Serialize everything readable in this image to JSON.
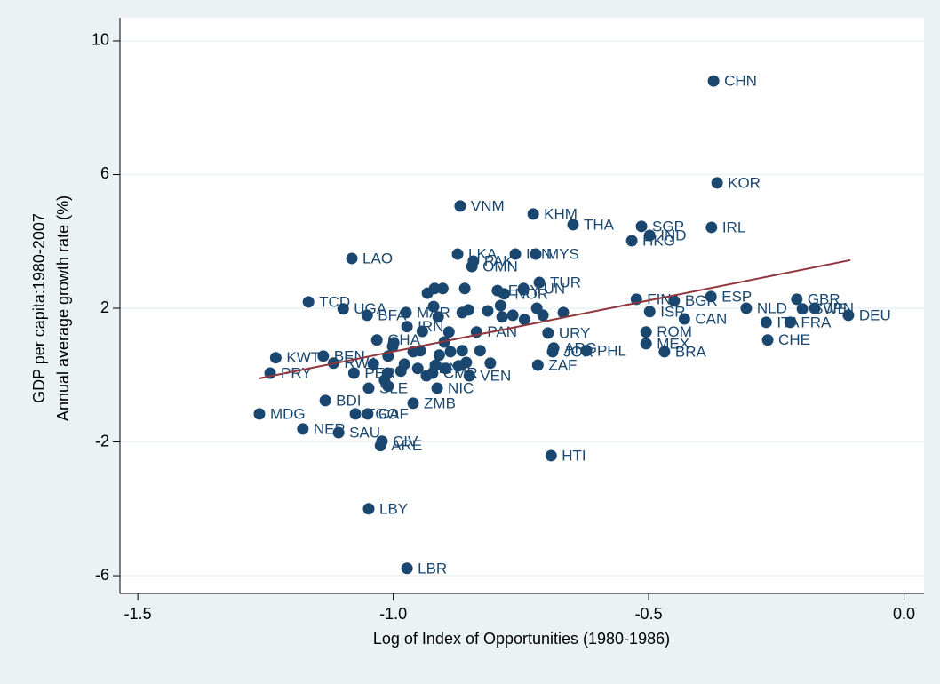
{
  "chart_data": {
    "type": "scatter",
    "x_label": "Log of Index of Opportunities (1980-1986)",
    "y_label": [
      "GDP per capita:1980-2007",
      "Annual average growth rate (%)"
    ],
    "xlim": [
      -1.535,
      0.039
    ],
    "ylim": [
      -6.53,
      10.69
    ],
    "xticks": [
      -1.5,
      {
        "value": -1.0,
        "label": "-1.0"
      },
      -0.5,
      {
        "value": 0.0,
        "label": "0.0"
      }
    ],
    "yticks": [
      -6,
      -2,
      2,
      6,
      10
    ],
    "grid": true,
    "color": "#1a476f",
    "x": [
      -0.373,
      -0.366,
      -0.869,
      -0.726,
      -0.648,
      -0.514,
      -0.377,
      -0.498,
      -0.533,
      -1.081,
      -0.874,
      -0.761,
      -0.721,
      -0.843,
      -0.846,
      -0.714,
      -0.745,
      -0.796,
      -0.783,
      -1.166,
      -1.098,
      -1.051,
      -0.975,
      -0.524,
      -0.45,
      -0.378,
      -0.21,
      -0.498,
      -0.43,
      -0.309,
      -0.199,
      -0.175,
      -0.109,
      -0.27,
      -0.223,
      -0.267,
      -0.505,
      -0.505,
      -0.469,
      -0.697,
      -0.686,
      -0.688,
      -0.622,
      -0.717,
      -0.973,
      -0.837,
      -1.032,
      -1.23,
      -1.137,
      -1.241,
      -1.117,
      -1.077,
      -1.048,
      -0.914,
      -0.851,
      -0.923,
      -0.952,
      -1.133,
      -0.961,
      -1.262,
      -1.074,
      -1.05,
      -1.177,
      -1.107,
      -1.022,
      -1.025,
      -0.691,
      -1.048,
      -0.973,
      -1.01,
      -1.011,
      -1.017,
      -0.985,
      -0.91,
      -0.865,
      -0.857,
      -0.83,
      -0.81,
      -0.917,
      -0.947,
      -0.9,
      -0.999,
      -0.933,
      -0.919,
      -0.903,
      -0.86,
      -0.853,
      -0.815,
      -0.79,
      -0.766,
      -0.743,
      -0.707,
      -0.667,
      -0.719,
      -0.912,
      -0.865,
      -0.921,
      -0.787,
      -0.961,
      -0.978,
      -1.01,
      -1.039,
      -1.001,
      -0.888,
      -0.872,
      -0.935,
      -0.897,
      -0.943,
      -0.891
    ],
    "values": [
      8.8,
      5.75,
      5.06,
      4.82,
      4.5,
      4.45,
      4.42,
      4.18,
      4.02,
      3.49,
      3.62,
      3.62,
      3.62,
      3.41,
      3.25,
      2.77,
      2.59,
      2.53,
      2.43,
      2.19,
      1.98,
      1.79,
      1.87,
      2.27,
      2.22,
      2.35,
      2.27,
      1.9,
      1.68,
      2.0,
      1.98,
      2.0,
      1.79,
      1.58,
      1.58,
      1.05,
      1.29,
      0.94,
      0.7,
      1.26,
      0.81,
      0.7,
      0.73,
      0.3,
      1.45,
      1.29,
      1.05,
      0.52,
      0.57,
      0.06,
      0.36,
      0.06,
      -0.39,
      -0.39,
      -0.02,
      0.06,
      0.2,
      -0.76,
      -0.84,
      -1.16,
      -1.16,
      -1.16,
      -1.61,
      -1.72,
      -1.98,
      -2.11,
      -2.41,
      -4.0,
      -5.78,
      0.57,
      0.06,
      -0.15,
      0.12,
      0.6,
      0.73,
      0.38,
      0.73,
      0.36,
      0.3,
      0.73,
      0.99,
      0.97,
      2.45,
      2.59,
      2.59,
      2.59,
      1.95,
      1.92,
      2.08,
      1.79,
      1.66,
      1.79,
      1.87,
      2.0,
      1.74,
      1.87,
      2.05,
      1.74,
      0.7,
      0.33,
      -0.33,
      0.33,
      0.86,
      0.7,
      0.28,
      -0.02,
      0.2,
      1.31,
      1.29
    ],
    "labels": [
      "CHN",
      "KOR",
      "VNM",
      "KHM",
      "THA",
      "SGP",
      "IRL",
      "IND",
      "HKG",
      "LAO",
      "LKA",
      "IDN",
      "MYS",
      "PAK",
      "OMN",
      "TUR",
      "TUN",
      "EGY",
      "NOR",
      "TCD",
      "UGA",
      "BFA",
      "MAR",
      "FIN",
      "BGR",
      "ESP",
      "GBR",
      "ISR",
      "CAN",
      "NLD",
      "SWE",
      "JPN",
      "DEU",
      "ITA",
      "FRA",
      "CHE",
      "ROM",
      "MEX",
      "BRA",
      "URY",
      "ARG",
      "JOR",
      "PHL",
      "ZAF",
      "IRN",
      "PAN",
      "GHA",
      "KWT",
      "BEN",
      "PRY",
      "RWA",
      "PER",
      "SLE",
      "NIC",
      "VEN",
      "CMR",
      "KEN",
      "BDI",
      "ZMB",
      "MDG",
      "TGO",
      "CAF",
      "NER",
      "SAU",
      "CIV",
      "ARE",
      "HTI",
      "LBY",
      "LBR",
      null,
      null,
      null,
      null,
      null,
      null,
      null,
      null,
      null,
      null,
      null,
      null,
      null,
      null,
      null,
      null,
      null,
      null,
      null,
      null,
      null,
      null,
      null,
      null,
      null,
      null,
      null,
      null,
      null,
      null,
      null,
      null,
      null,
      null,
      null,
      null,
      null,
      null,
      null,
      null
    ],
    "fit_line": {
      "x": [
        -1.263,
        -0.105
      ],
      "y": [
        -0.1,
        3.44
      ],
      "color": "#90353b"
    }
  }
}
